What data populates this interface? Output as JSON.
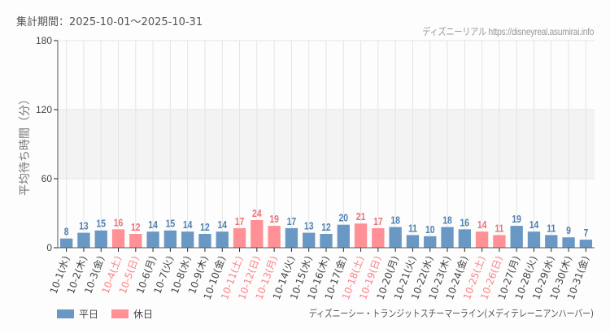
{
  "header": {
    "period_label": "集計期間：2025-10-01〜2025-10-31",
    "credit": "ディズニーリアル https://disneyreal.asumirai.info"
  },
  "legend": {
    "weekday_label": "平日",
    "holiday_label": "休日",
    "weekday_color": "#6a98c4",
    "holiday_color": "#ff9095"
  },
  "attraction_name": "ディズニーシー・トランジットスチーマーライン(メディテレーニアンハーバー)",
  "chart_data": {
    "type": "bar",
    "title": "",
    "xlabel": "",
    "ylabel": "平均待ち時間（分）",
    "ylim": [
      0,
      180
    ],
    "yticks": [
      0,
      60,
      120,
      180
    ],
    "highlight_band": [
      60,
      120
    ],
    "grid": true,
    "legend_position": "bottom-left",
    "categories": [
      "10-1(水)",
      "10-2(木)",
      "10-3(金)",
      "10-4(土)",
      "10-5(日)",
      "10-6(月)",
      "10-7(火)",
      "10-8(水)",
      "10-9(木)",
      "10-10(金)",
      "10-11(土)",
      "10-12(日)",
      "10-13(月)",
      "10-14(火)",
      "10-15(水)",
      "10-16(木)",
      "10-17(金)",
      "10-18(土)",
      "10-19(日)",
      "10-20(月)",
      "10-21(火)",
      "10-22(水)",
      "10-23(木)",
      "10-24(金)",
      "10-25(土)",
      "10-26(日)",
      "10-27(月)",
      "10-28(火)",
      "10-29(水)",
      "10-30(木)",
      "10-31(金)"
    ],
    "values": [
      8,
      13,
      15,
      16,
      12,
      14,
      15,
      14,
      12,
      14,
      17,
      24,
      19,
      17,
      13,
      12,
      20,
      21,
      17,
      18,
      11,
      10,
      18,
      16,
      14,
      11,
      19,
      14,
      11,
      9,
      7
    ],
    "day_type": [
      "weekday",
      "weekday",
      "weekday",
      "holiday",
      "holiday",
      "weekday",
      "weekday",
      "weekday",
      "weekday",
      "weekday",
      "holiday",
      "holiday",
      "holiday",
      "weekday",
      "weekday",
      "weekday",
      "weekday",
      "holiday",
      "holiday",
      "weekday",
      "weekday",
      "weekday",
      "weekday",
      "weekday",
      "holiday",
      "holiday",
      "weekday",
      "weekday",
      "weekday",
      "weekday",
      "weekday"
    ],
    "series": [
      {
        "name": "平日",
        "color": "#6a98c4"
      },
      {
        "name": "休日",
        "color": "#ff9095"
      }
    ]
  }
}
